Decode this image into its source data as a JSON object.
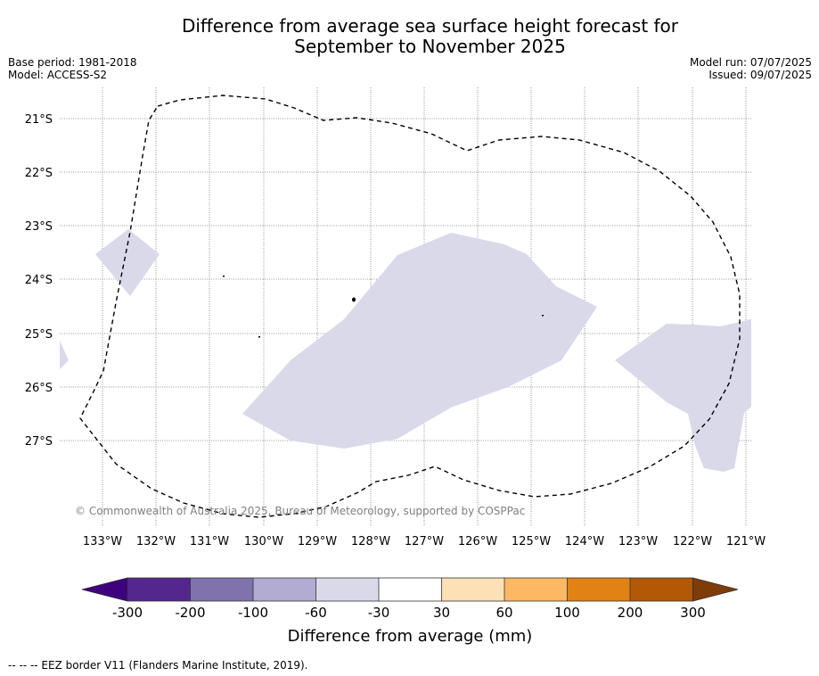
{
  "header": {
    "title_line1": "Difference from average sea surface height forecast for",
    "title_line2": "September to November 2025",
    "base_period": "Base period: 1981-2018",
    "model": "Model: ACCESS-S2",
    "model_run": "Model run: 07/07/2025",
    "issued": "Issued: 09/07/2025"
  },
  "map": {
    "lat_labels": [
      "21°S",
      "22°S",
      "23°S",
      "24°S",
      "25°S",
      "26°S",
      "27°S"
    ],
    "lon_labels": [
      "133°W",
      "132°W",
      "131°W",
      "130°W",
      "129°W",
      "128°W",
      "127°W",
      "126°W",
      "125°W",
      "124°W",
      "123°W",
      "122°W",
      "121°W"
    ],
    "copyright": "© Commonwealth of Australia 2025, Bureau of Meteorology, supported by COSPPac",
    "anomaly_fill_color": "#d9d9ea",
    "eez_line_color": "#000000"
  },
  "colorbar": {
    "title": "Difference from average (mm)",
    "tick_labels": [
      "-300",
      "-200",
      "-100",
      "-60",
      "-30",
      "30",
      "60",
      "100",
      "200",
      "300"
    ],
    "colors": [
      "#3f007d",
      "#54278f",
      "#8072ad",
      "#b2abd2",
      "#d9d9ea",
      "#ffffff",
      "#fee0b6",
      "#fdb863",
      "#e08214",
      "#b35806",
      "#7f3b08"
    ]
  },
  "footer": {
    "eez_legend": "--  --  -- EEZ border V11 (Flanders Marine Institute, 2019)."
  }
}
